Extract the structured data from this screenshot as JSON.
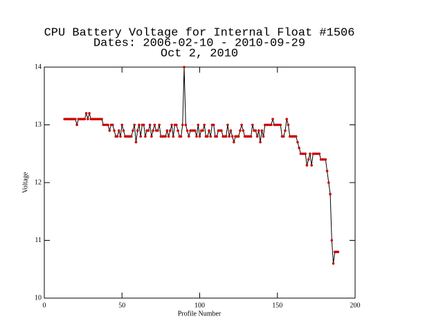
{
  "chart_data": {
    "type": "line",
    "title": [
      "CPU Battery Voltage for Internal Float #1506",
      "Dates:  2006-02-10 -  2010-09-29",
      "Oct  2, 2010"
    ],
    "xlabel": "Profile Number",
    "ylabel": "Voltage",
    "xlim": [
      0,
      200
    ],
    "xticks": [
      0,
      50,
      100,
      150,
      200
    ],
    "ylim": [
      10,
      14
    ],
    "yticks": [
      10,
      11,
      12,
      13,
      14
    ],
    "series": [
      {
        "name": "Voltage",
        "color": "#000000",
        "marker_color": "#cc0000",
        "x": [
          13,
          14,
          15,
          16,
          17,
          18,
          19,
          20,
          21,
          22,
          23,
          24,
          25,
          26,
          27,
          28,
          29,
          30,
          31,
          32,
          33,
          34,
          35,
          36,
          37,
          38,
          39,
          40,
          41,
          42,
          43,
          44,
          45,
          46,
          47,
          48,
          49,
          50,
          51,
          52,
          53,
          54,
          55,
          56,
          57,
          58,
          59,
          60,
          61,
          62,
          63,
          64,
          65,
          66,
          67,
          68,
          69,
          70,
          71,
          72,
          73,
          74,
          75,
          76,
          77,
          78,
          79,
          80,
          81,
          82,
          83,
          84,
          85,
          86,
          87,
          88,
          89,
          90,
          91,
          92,
          93,
          94,
          95,
          96,
          97,
          98,
          99,
          100,
          101,
          102,
          103,
          104,
          105,
          106,
          107,
          108,
          109,
          110,
          111,
          112,
          113,
          114,
          115,
          116,
          117,
          118,
          119,
          120,
          121,
          122,
          123,
          124,
          125,
          126,
          127,
          128,
          129,
          130,
          131,
          132,
          133,
          134,
          135,
          136,
          137,
          138,
          139,
          140,
          141,
          142,
          143,
          144,
          145,
          146,
          147,
          148,
          149,
          150,
          151,
          152,
          153,
          154,
          155,
          156,
          157,
          158,
          159,
          160,
          161,
          162,
          163,
          164,
          165,
          166,
          167,
          168,
          169,
          170,
          171,
          172,
          173,
          174,
          175,
          176,
          177,
          178,
          179,
          180,
          181,
          182,
          183,
          184,
          185,
          186,
          187,
          188,
          189
        ],
        "values": [
          13.1,
          13.1,
          13.1,
          13.1,
          13.1,
          13.1,
          13.1,
          13.1,
          13.0,
          13.1,
          13.1,
          13.1,
          13.1,
          13.1,
          13.2,
          13.1,
          13.2,
          13.1,
          13.1,
          13.1,
          13.1,
          13.1,
          13.1,
          13.1,
          13.1,
          13.0,
          13.0,
          13.0,
          13.0,
          12.9,
          13.0,
          13.0,
          12.9,
          12.8,
          12.8,
          12.9,
          12.8,
          13.0,
          12.9,
          12.8,
          12.8,
          12.8,
          12.8,
          12.8,
          12.9,
          13.0,
          12.7,
          12.9,
          13.0,
          12.8,
          13.0,
          13.0,
          12.8,
          12.9,
          12.9,
          13.0,
          12.8,
          12.9,
          13.0,
          12.9,
          12.9,
          13.0,
          12.8,
          12.8,
          12.8,
          12.8,
          12.9,
          12.8,
          12.9,
          13.0,
          12.8,
          13.0,
          13.0,
          12.9,
          12.8,
          12.8,
          13.0,
          14.0,
          13.0,
          12.9,
          12.8,
          12.9,
          12.9,
          12.9,
          12.9,
          12.8,
          13.0,
          12.8,
          12.9,
          12.9,
          13.0,
          12.8,
          12.8,
          12.9,
          12.8,
          13.0,
          13.0,
          12.8,
          12.8,
          12.9,
          12.9,
          12.9,
          12.8,
          12.8,
          12.8,
          13.0,
          12.8,
          12.9,
          12.8,
          12.7,
          12.8,
          12.8,
          12.8,
          12.9,
          13.0,
          12.9,
          12.8,
          12.8,
          12.8,
          12.8,
          12.8,
          13.0,
          12.9,
          12.9,
          12.8,
          12.9,
          12.7,
          12.9,
          12.8,
          13.0,
          13.0,
          13.0,
          13.0,
          13.0,
          13.1,
          13.0,
          13.0,
          13.0,
          13.0,
          13.0,
          12.8,
          12.8,
          12.9,
          13.1,
          13.0,
          12.8,
          12.8,
          12.8,
          12.8,
          12.8,
          12.7,
          12.6,
          12.5,
          12.5,
          12.5,
          12.5,
          12.3,
          12.4,
          12.5,
          12.3,
          12.5,
          12.5,
          12.5,
          12.5,
          12.5,
          12.4,
          12.4,
          12.4,
          12.4,
          12.2,
          12.0,
          11.8,
          11.0,
          10.6,
          10.8,
          10.8,
          10.8
        ]
      }
    ]
  }
}
